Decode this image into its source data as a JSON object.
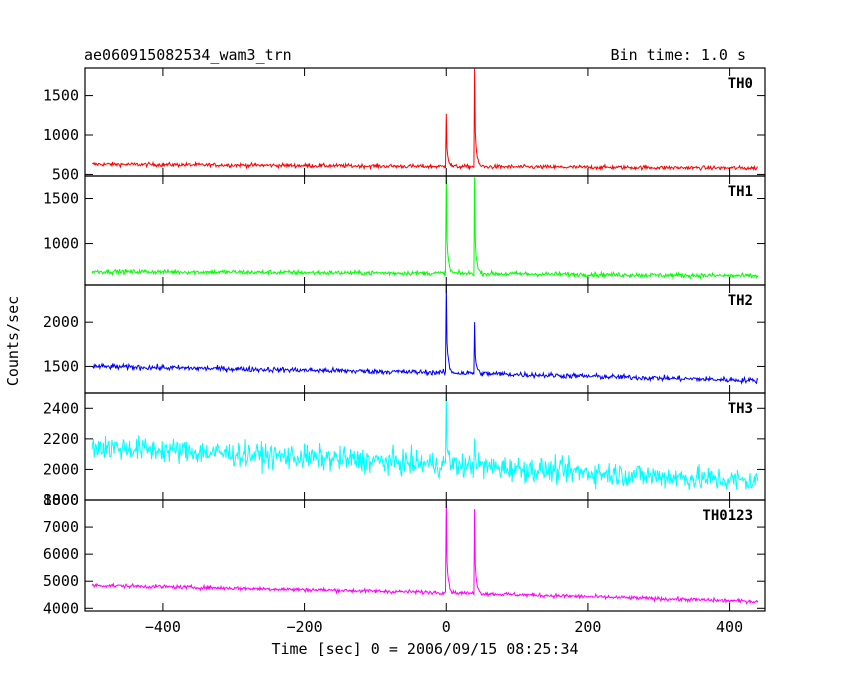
{
  "chart_data": {
    "type": "line",
    "title": "ae060915082534_wam3_trn",
    "subtitle": "Bin time: 1.0 s",
    "xlabel": "Time [sec] 0 = 2006/09/15 08:25:34",
    "ylabel": "Counts/sec",
    "xlim": [
      -510,
      450
    ],
    "x_ticks": [
      -400,
      -200,
      0,
      200,
      400
    ],
    "x_tick_labels": [
      "−400",
      "−200",
      "0",
      "200",
      "400"
    ],
    "x_range_data": [
      -500,
      440
    ],
    "panels": [
      {
        "name": "TH0",
        "color": "#ff0000",
        "ylim": [
          480,
          1850
        ],
        "yticks": [
          500,
          1000,
          1500
        ],
        "baseline": [
          [
            -500,
            630
          ],
          [
            0,
            600
          ],
          [
            440,
            580
          ]
        ],
        "noise": 25,
        "peaks": [
          {
            "x": 0,
            "value": 1290
          },
          {
            "x": 40,
            "value": 1850
          }
        ]
      },
      {
        "name": "TH1",
        "color": "#00ff00",
        "ylim": [
          540,
          1750
        ],
        "yticks": [
          1000,
          1500
        ],
        "baseline": [
          [
            -500,
            690
          ],
          [
            0,
            670
          ],
          [
            440,
            640
          ]
        ],
        "noise": 25,
        "peaks": [
          {
            "x": 0,
            "value": 1750
          },
          {
            "x": 40,
            "value": 1720
          }
        ]
      },
      {
        "name": "TH2",
        "color": "#0000ff",
        "ylim": [
          1200,
          2420
        ],
        "yticks": [
          1500,
          2000
        ],
        "baseline": [
          [
            -500,
            1500
          ],
          [
            0,
            1430
          ],
          [
            440,
            1340
          ]
        ],
        "noise": 30,
        "peaks": [
          {
            "x": 0,
            "value": 2420
          },
          {
            "x": 40,
            "value": 2000
          }
        ]
      },
      {
        "name": "TH3",
        "color": "#00ffff",
        "ylim": [
          1800,
          2500
        ],
        "yticks": [
          1800,
          2000,
          2200,
          2400
        ],
        "baseline": [
          [
            -500,
            2150
          ],
          [
            0,
            2030
          ],
          [
            440,
            1920
          ]
        ],
        "noise": 80,
        "peaks": [
          {
            "x": 0,
            "value": 2460
          },
          {
            "x": 40,
            "value": 2250
          }
        ]
      },
      {
        "name": "TH0123",
        "color": "#ff00ff",
        "ylim": [
          3900,
          8000
        ],
        "yticks": [
          4000,
          5000,
          6000,
          7000,
          8000
        ],
        "baseline": [
          [
            -500,
            4850
          ],
          [
            0,
            4580
          ],
          [
            440,
            4250
          ]
        ],
        "noise": 70,
        "peaks": [
          {
            "x": 0,
            "value": 8000
          },
          {
            "x": 40,
            "value": 7700
          }
        ]
      }
    ],
    "grid": false,
    "legend": "panel labels top-right"
  }
}
